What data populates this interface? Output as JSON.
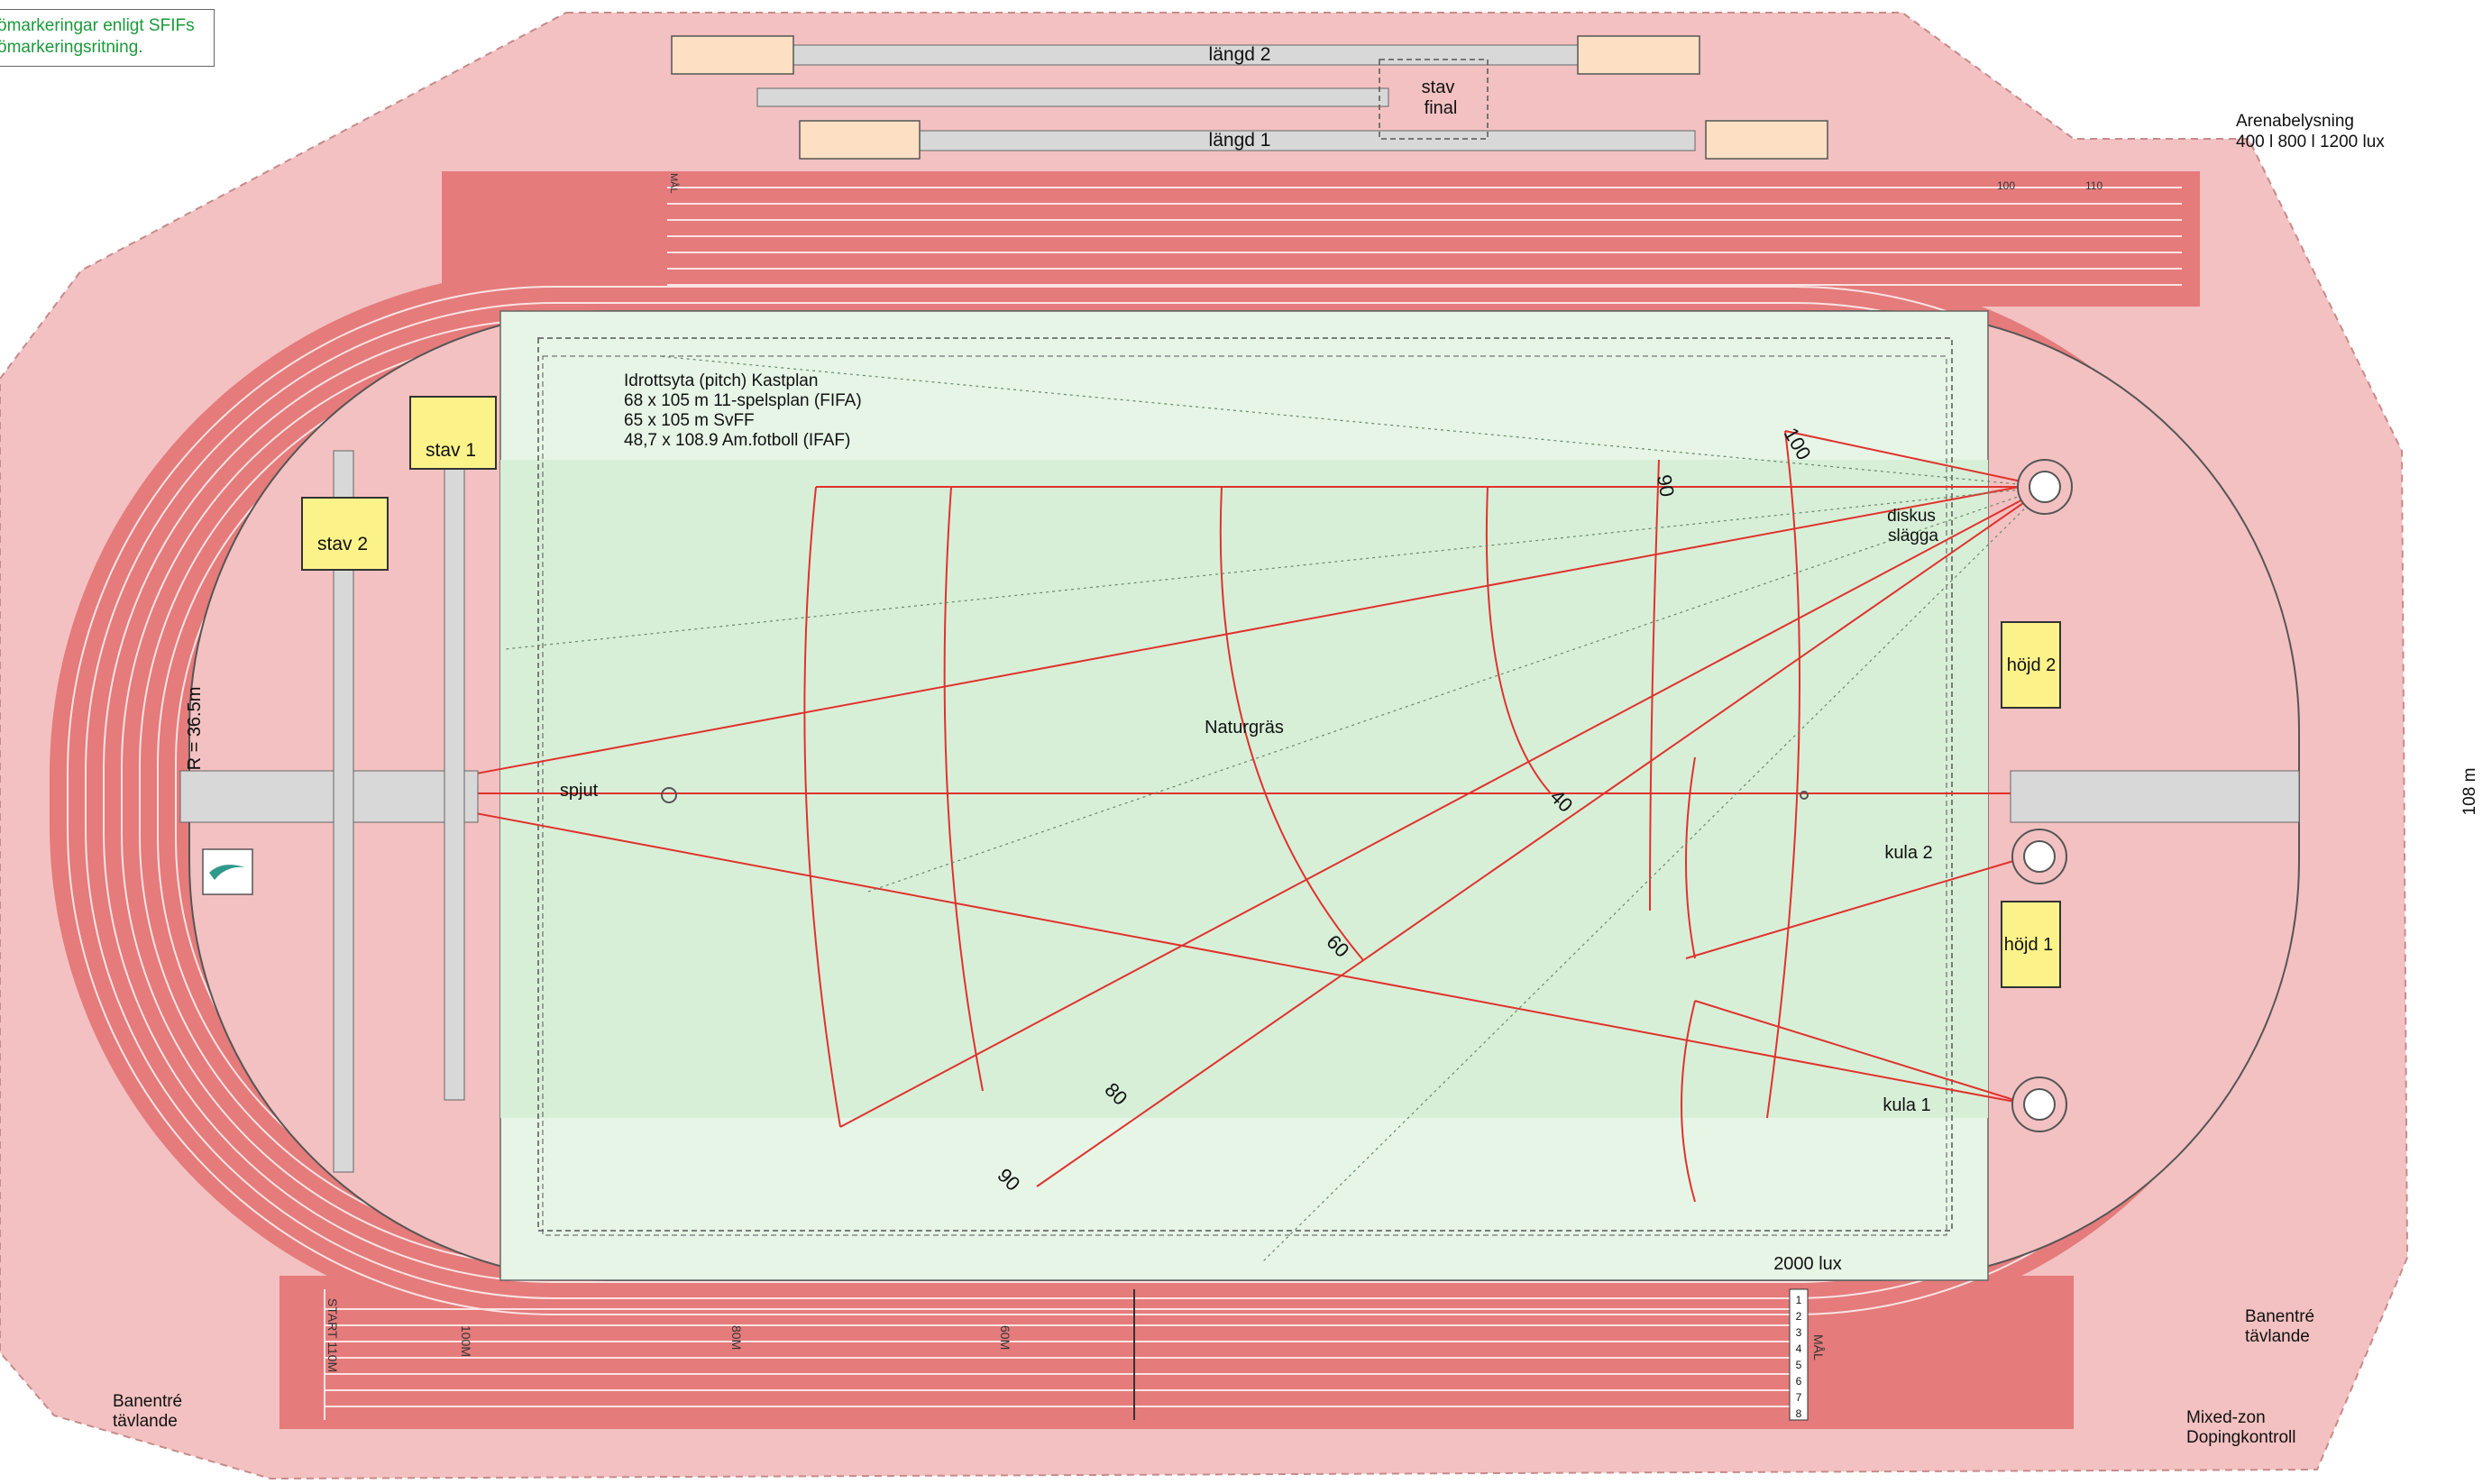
{
  "note": {
    "line1": "ömarkeringar enligt SFIFs",
    "line2": "ömarkeringsritning."
  },
  "labels": {
    "langd2": "längd 2",
    "langd1": "längd 1",
    "stav_final_1": "stav",
    "stav_final_2": "final",
    "arena_lighting_1": "Arenabelysning",
    "arena_lighting_2": "400 l 800 l 1200 lux",
    "pitch_1": "Idrottsyta (pitch)  Kastplan",
    "pitch_2": "68 x 105 m 11-spelsplan (FIFA)",
    "pitch_3": "65 x 105 m SvFF",
    "pitch_4": "48,7 x 108.9 Am.fotboll (IFAF)",
    "stav1": "stav 1",
    "stav2": "stav 2",
    "diskus": "diskus",
    "slagga": "slägga",
    "hojd2": "höjd 2",
    "hojd1": "höjd 1",
    "naturgras": "Naturgräs",
    "spjut": "spjut",
    "kula2": "kula 2",
    "kula1": "kula 1",
    "radius": "R = 36.5m",
    "width108": "108 m",
    "lux2000": "2000 lux",
    "banentre_right_1": "Banentré",
    "banentre_right_2": "tävlande",
    "banentre_left_1": "Banentré",
    "banentre_left_2": "tävlande",
    "mixed_1": "Mixed-zon",
    "mixed_2": "Dopingkontroll",
    "sector_90_top": "90",
    "sector_100": "100",
    "sector_40": "40",
    "sector_60": "60",
    "sector_80": "80",
    "sector_90_bottom": "90",
    "start110": "START 110M",
    "m100": "100M",
    "m80": "80M",
    "m60": "60M",
    "mal": "MÅL",
    "mal_top": "MÅL",
    "top100": "100",
    "top110": "110",
    "lane_numbers": [
      "1",
      "2",
      "3",
      "4",
      "5",
      "6",
      "7",
      "8"
    ]
  },
  "colors": {
    "apron": "#f3c1c1",
    "track": "#e57b7b",
    "pitch": "#d7efd7",
    "pitch_light": "#e6f5e6",
    "runway": "#d8d8d8",
    "pit": "#fde0c4",
    "hj_mat": "#fbf28a",
    "sector": "#e0322e",
    "white_line": "#fbe3e3"
  }
}
